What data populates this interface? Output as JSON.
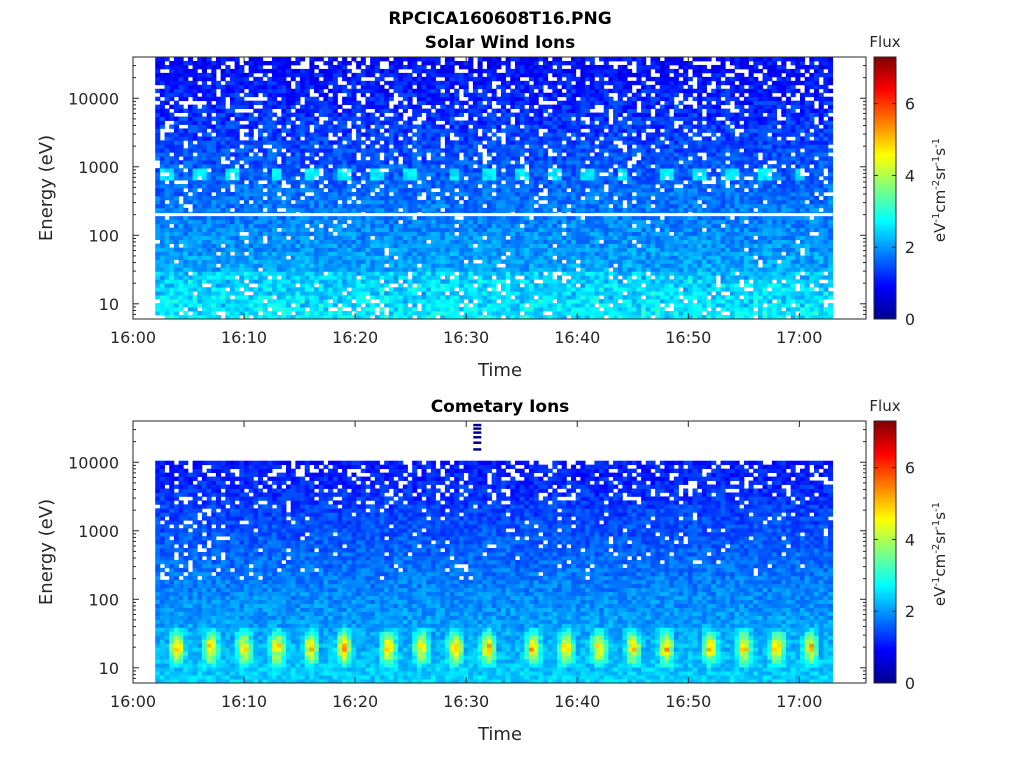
{
  "figure": {
    "filename": "RPCICA160608T16.PNG"
  },
  "chart_data": [
    {
      "type": "heatmap",
      "title": "Solar Wind Ions",
      "xlabel": "Time",
      "ylabel": "Energy (eV)",
      "y_scale": "log",
      "x_ticks": [
        "16:00",
        "16:10",
        "16:20",
        "16:30",
        "16:40",
        "16:50",
        "17:00"
      ],
      "x_range": [
        "16:00",
        "17:06"
      ],
      "data_time_range": [
        "16:02",
        "17:03"
      ],
      "y_ticks": [
        {
          "value": 10,
          "label": "10"
        },
        {
          "value": 100,
          "label": "100"
        },
        {
          "value": 1000,
          "label": "1000"
        },
        {
          "value": 10000,
          "label": "10000"
        }
      ],
      "y_range": [
        6,
        40000
      ],
      "colorbar": {
        "title": "Flux",
        "label": "eV-1cm-2sr-1s-1",
        "range": [
          0,
          7.3
        ],
        "ticks": [
          0,
          2,
          4,
          6
        ]
      },
      "features": {
        "gap_line_energy_eV": 200,
        "pulse_energy_eV": 800,
        "pulse_times": [
          "16:03",
          "16:06",
          "16:09",
          "16:13",
          "16:16",
          "16:19",
          "16:22",
          "16:25",
          "16:29",
          "16:32",
          "16:35",
          "16:38",
          "16:41",
          "16:44",
          "16:48",
          "16:51",
          "16:54",
          "16:57",
          "17:00"
        ]
      }
    },
    {
      "type": "heatmap",
      "title": "Cometary Ions",
      "xlabel": "Time",
      "ylabel": "Energy (eV)",
      "y_scale": "log",
      "x_ticks": [
        "16:00",
        "16:10",
        "16:20",
        "16:30",
        "16:40",
        "16:50",
        "17:00"
      ],
      "x_range": [
        "16:00",
        "17:06"
      ],
      "data_time_range": [
        "16:02",
        "17:03"
      ],
      "y_ticks": [
        {
          "value": 10,
          "label": "10"
        },
        {
          "value": 100,
          "label": "100"
        },
        {
          "value": 1000,
          "label": "1000"
        },
        {
          "value": 10000,
          "label": "10000"
        }
      ],
      "y_range": [
        6,
        40000
      ],
      "colorbar": {
        "title": "Flux",
        "label": "eV-1cm-2sr-1s-1",
        "range": [
          0,
          7.3
        ],
        "ticks": [
          0,
          2,
          4,
          6
        ]
      },
      "features": {
        "max_energy_eV": 11000,
        "peak_energy_eV": 20,
        "pulse_times": [
          "16:04",
          "16:07",
          "16:10",
          "16:13",
          "16:16",
          "16:19",
          "16:23",
          "16:26",
          "16:29",
          "16:32",
          "16:36",
          "16:39",
          "16:42",
          "16:45",
          "16:48",
          "16:52",
          "16:55",
          "16:58",
          "17:01"
        ]
      }
    }
  ],
  "colors": {
    "background": "#ffffff",
    "axis": "#262626",
    "gap": "#ffffff"
  }
}
